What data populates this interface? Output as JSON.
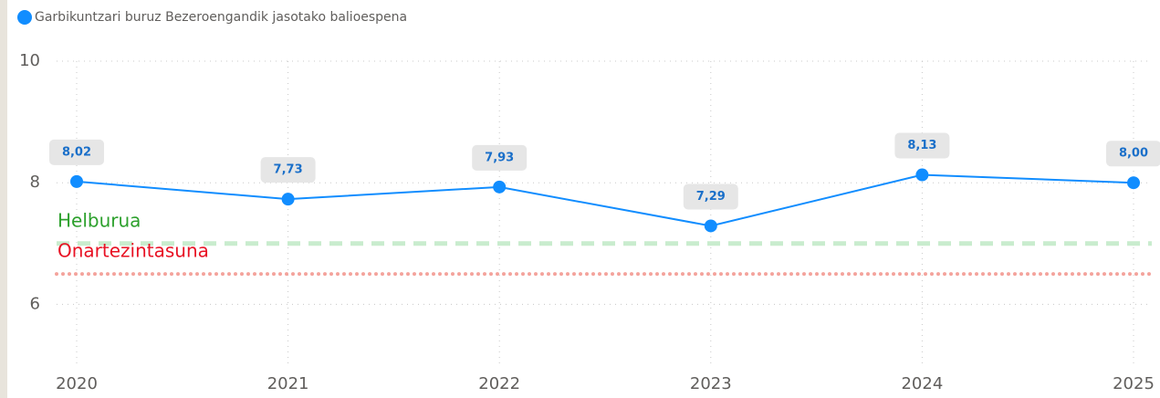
{
  "chart_data": {
    "type": "line",
    "legend_title": "Garbikuntzari buruz Bezeroengandik jasotako balioespena",
    "categories": [
      "2020",
      "2021",
      "2022",
      "2023",
      "2024",
      "2025"
    ],
    "series": [
      {
        "name": "Garbikuntzari buruz Bezeroengandik jasotako balioespena",
        "color": "#118dff",
        "values": [
          8.02,
          7.73,
          7.93,
          7.29,
          8.13,
          8.0
        ],
        "value_labels": [
          "8,02",
          "7,73",
          "7,93",
          "7,29",
          "8,13",
          "8,00"
        ]
      }
    ],
    "ylim": [
      5,
      10
    ],
    "yticks": [
      6,
      8,
      10
    ],
    "grid": true,
    "reference_lines": [
      {
        "label": "Helburua",
        "value": 7,
        "color": "#c9ecce",
        "label_color": "#2ca02c",
        "style": "dashed"
      },
      {
        "label": "Onartezintasuna",
        "value": 6.5,
        "color": "#f4a39c",
        "label_color": "#e81123",
        "style": "dotted"
      }
    ]
  }
}
